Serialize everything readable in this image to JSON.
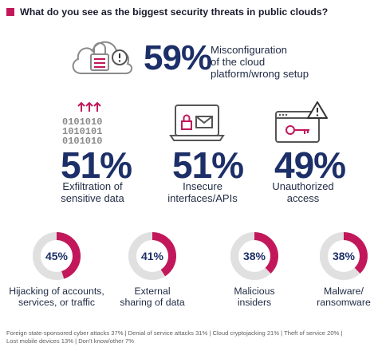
{
  "question": "What do you see as the biggest security threats in public clouds?",
  "colors": {
    "accent": "#c2185b",
    "navy": "#1c2f68",
    "track": "#e0e0e0"
  },
  "chart_data": [
    {
      "type": "bar",
      "categories": [
        "Misconfiguration of the cloud platform/wrong setup",
        "Exfiltration of sensitive data",
        "Insecure interfaces/APIs",
        "Unauthorized access"
      ],
      "values": [
        59,
        51,
        51,
        49
      ],
      "value_labels": [
        "59%",
        "51%",
        "51%",
        "49%"
      ],
      "label_lines": [
        [
          "Misconfiguration",
          "of the cloud",
          "platform/wrong setup"
        ],
        [
          "Exfiltration of",
          "sensitive data"
        ],
        [
          "Insecure",
          "interfaces/APIs"
        ],
        [
          "Unauthorized",
          "access"
        ]
      ],
      "icons": [
        "cloud-lock-warning-icon",
        "binary-upload-icon",
        "laptop-lock-mail-icon",
        "browser-key-warning-icon"
      ]
    },
    {
      "type": "pie",
      "categories": [
        "Hijacking of accounts, services, or traffic",
        "External sharing of data",
        "Malicious insiders",
        "Malware/ ransomware"
      ],
      "values": [
        45,
        41,
        38,
        38
      ],
      "value_labels": [
        "45%",
        "41%",
        "38%",
        "38%"
      ],
      "label_lines": [
        [
          "Hijacking of accounts,",
          "services, or traffic"
        ],
        [
          "External",
          "sharing of data"
        ],
        [
          "Malicious",
          "insiders"
        ],
        [
          "Malware/",
          "ransomware"
        ]
      ]
    }
  ],
  "footer": {
    "lines": [
      "Foreign state-sponsored cyber attacks 37%  |  Denial of service attacks 31%  |  Cloud cryptojacking 21%  |  Theft of service 20%  |",
      "Lost mobile devices 13%  |  Don't know/other 7%"
    ]
  }
}
